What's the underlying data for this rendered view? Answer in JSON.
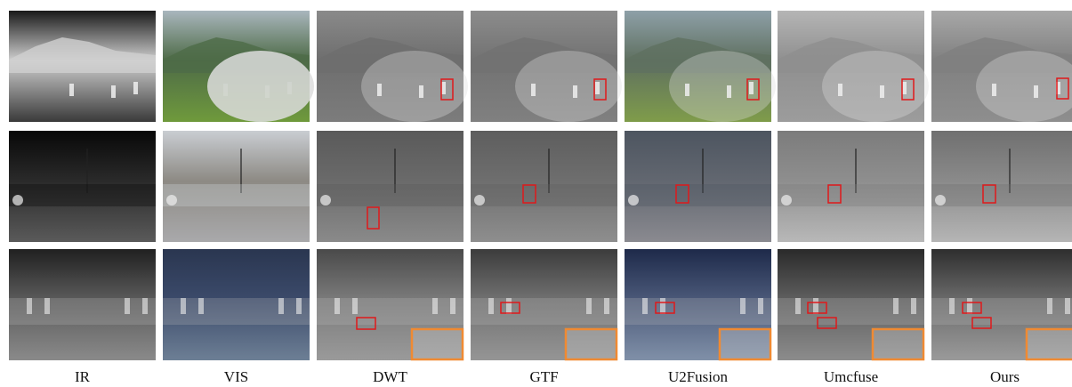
{
  "columns": [
    "IR",
    "VIS",
    "DWT",
    "GTF",
    "U2Fusion",
    "Umcfuse",
    "Ours"
  ]
}
